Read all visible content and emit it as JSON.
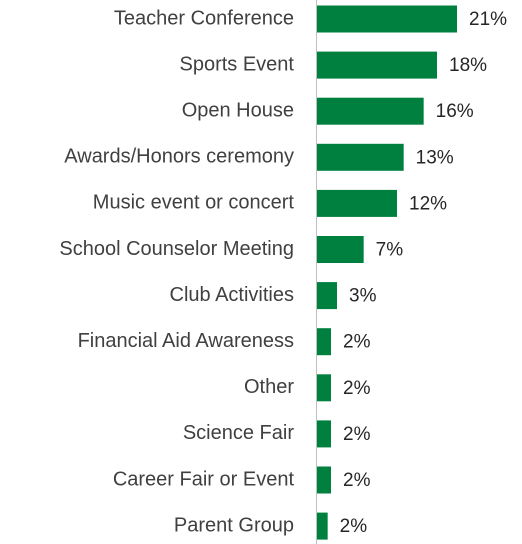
{
  "chart_data": {
    "type": "hbar",
    "categories": [
      "Teacher Conference",
      "Sports Event",
      "Open House",
      "Awards/Honors ceremony",
      "Music event or concert",
      "School Counselor Meeting",
      "Club Activities",
      "Financial Aid Awareness",
      "Other",
      "Science Fair",
      "Career Fair or Event",
      "Parent Group"
    ],
    "values": [
      21,
      18,
      16,
      13,
      12,
      7,
      3,
      2.1,
      2.1,
      2.1,
      2.1,
      1.6
    ],
    "value_labels": [
      "21%",
      "18%",
      "16%",
      "13%",
      "12%",
      "7%",
      "3%",
      "2%",
      "2%",
      "2%",
      "2%",
      "2%"
    ],
    "color": "#00803e"
  }
}
